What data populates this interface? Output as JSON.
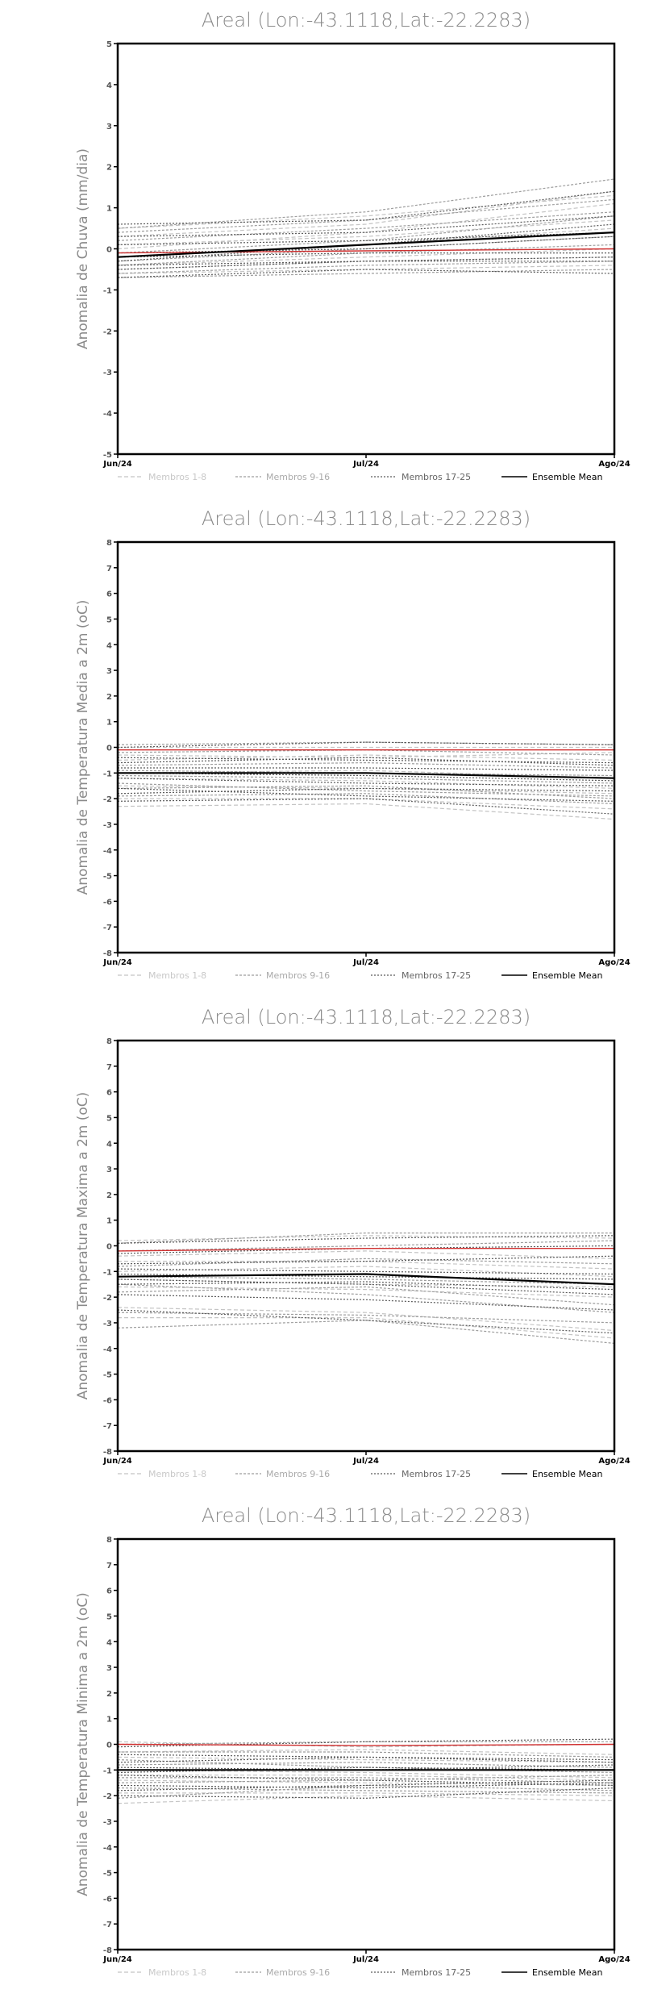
{
  "legend_labels": [
    "Membros 1-8",
    "Membros 9-16",
    "Membros 17-25",
    "Ensemble Mean"
  ],
  "colors": {
    "frame": "#000000",
    "title": "#8a8a8a",
    "axis_label": "#8a8a8a",
    "tick_label": "#555555",
    "members_1_8": "#c4c4c4",
    "members_9_16": "#9e9e9e",
    "members_17_25": "#5a5a5a",
    "ensemble_mean": "#000000",
    "observed_zero": "#d03030"
  },
  "chart_data": [
    {
      "type": "line",
      "title": "Areal (Lon:-43.1118,Lat:-22.2283)",
      "xlabel": "",
      "ylabel": "Anomalia de Chuva (mm/dia)",
      "x": [
        "Jun/24",
        "Jul/24",
        "Ago/24"
      ],
      "ylim": [
        -5,
        5
      ],
      "yticks": [
        5,
        4,
        3,
        2,
        1,
        0,
        -1,
        -2,
        -3,
        -4,
        -5
      ],
      "grid": false,
      "legend_position": "bottom",
      "series": [
        {
          "group": 1,
          "values": [
            0.5,
            0.8,
            1.3
          ]
        },
        {
          "group": 1,
          "values": [
            0.3,
            0.6,
            1.4
          ]
        },
        {
          "group": 1,
          "values": [
            0.1,
            0.3,
            0.7
          ]
        },
        {
          "group": 1,
          "values": [
            -0.2,
            0.1,
            0.5
          ]
        },
        {
          "group": 1,
          "values": [
            -0.4,
            -0.2,
            0.0
          ]
        },
        {
          "group": 1,
          "values": [
            -0.5,
            -0.3,
            -0.2
          ]
        },
        {
          "group": 1,
          "values": [
            -0.6,
            -0.5,
            -0.4
          ]
        },
        {
          "group": 1,
          "values": [
            0.0,
            0.4,
            1.1
          ]
        },
        {
          "group": 2,
          "values": [
            0.5,
            0.9,
            1.7
          ]
        },
        {
          "group": 2,
          "values": [
            0.4,
            0.7,
            1.2
          ]
        },
        {
          "group": 2,
          "values": [
            0.2,
            0.5,
            0.9
          ]
        },
        {
          "group": 2,
          "values": [
            -0.1,
            0.2,
            0.8
          ]
        },
        {
          "group": 2,
          "values": [
            -0.3,
            0.0,
            0.3
          ]
        },
        {
          "group": 2,
          "values": [
            -0.4,
            -0.1,
            0.1
          ]
        },
        {
          "group": 2,
          "values": [
            -0.6,
            -0.4,
            -0.3
          ]
        },
        {
          "group": 2,
          "values": [
            -0.7,
            -0.6,
            -0.5
          ]
        },
        {
          "group": 3,
          "values": [
            0.6,
            0.7,
            1.4
          ]
        },
        {
          "group": 3,
          "values": [
            0.3,
            0.4,
            0.8
          ]
        },
        {
          "group": 3,
          "values": [
            0.1,
            0.2,
            0.4
          ]
        },
        {
          "group": 3,
          "values": [
            -0.1,
            0.0,
            0.3
          ]
        },
        {
          "group": 3,
          "values": [
            -0.2,
            -0.1,
            -0.1
          ]
        },
        {
          "group": 3,
          "values": [
            -0.4,
            -0.3,
            -0.2
          ]
        },
        {
          "group": 3,
          "values": [
            -0.5,
            -0.3,
            -0.3
          ]
        },
        {
          "group": 3,
          "values": [
            -0.7,
            -0.5,
            -0.6
          ]
        },
        {
          "group": 3,
          "values": [
            -0.3,
            0.1,
            0.6
          ]
        },
        {
          "group": "mean",
          "values": [
            -0.2,
            0.1,
            0.4
          ]
        },
        {
          "group": "observed",
          "values": [
            -0.1,
            -0.05,
            0.0
          ]
        }
      ]
    },
    {
      "type": "line",
      "title": "Areal (Lon:-43.1118,Lat:-22.2283)",
      "xlabel": "",
      "ylabel": "Anomalia de Temperatura Media a 2m (oC)",
      "x": [
        "Jun/24",
        "Jul/24",
        "Ago/24"
      ],
      "ylim": [
        -8,
        8
      ],
      "yticks": [
        8,
        7,
        6,
        5,
        4,
        3,
        2,
        1,
        0,
        -1,
        -2,
        -3,
        -4,
        -5,
        -6,
        -7,
        -8
      ],
      "grid": false,
      "legend_position": "bottom",
      "series": [
        {
          "group": 1,
          "values": [
            0.0,
            0.0,
            0.0
          ]
        },
        {
          "group": 1,
          "values": [
            -0.5,
            -0.3,
            -0.5
          ]
        },
        {
          "group": 1,
          "values": [
            -1.0,
            -0.9,
            -1.2
          ]
        },
        {
          "group": 1,
          "values": [
            -1.5,
            -1.6,
            -1.8
          ]
        },
        {
          "group": 1,
          "values": [
            -2.0,
            -2.0,
            -2.4
          ]
        },
        {
          "group": 1,
          "values": [
            -2.3,
            -2.2,
            -2.8
          ]
        },
        {
          "group": 1,
          "values": [
            -0.3,
            -0.4,
            -0.2
          ]
        },
        {
          "group": 1,
          "values": [
            -1.2,
            -1.3,
            -1.6
          ]
        },
        {
          "group": 2,
          "values": [
            0.1,
            0.2,
            0.1
          ]
        },
        {
          "group": 2,
          "values": [
            -0.2,
            -0.1,
            -0.3
          ]
        },
        {
          "group": 2,
          "values": [
            -0.7,
            -0.6,
            -0.8
          ]
        },
        {
          "group": 2,
          "values": [
            -1.1,
            -1.2,
            -1.4
          ]
        },
        {
          "group": 2,
          "values": [
            -1.6,
            -1.5,
            -2.0
          ]
        },
        {
          "group": 2,
          "values": [
            -1.9,
            -1.8,
            -2.2
          ]
        },
        {
          "group": 2,
          "values": [
            -0.9,
            -1.0,
            -1.1
          ]
        },
        {
          "group": 2,
          "values": [
            -1.4,
            -1.7,
            -1.9
          ]
        },
        {
          "group": 3,
          "values": [
            0.0,
            0.2,
            0.1
          ]
        },
        {
          "group": 3,
          "values": [
            -0.4,
            -0.5,
            -0.6
          ]
        },
        {
          "group": 3,
          "values": [
            -0.8,
            -0.8,
            -0.9
          ]
        },
        {
          "group": 3,
          "values": [
            -1.2,
            -1.4,
            -1.5
          ]
        },
        {
          "group": 3,
          "values": [
            -1.6,
            -1.9,
            -2.1
          ]
        },
        {
          "group": 3,
          "values": [
            -2.1,
            -2.0,
            -2.6
          ]
        },
        {
          "group": 3,
          "values": [
            -0.6,
            -0.4,
            -0.7
          ]
        },
        {
          "group": 3,
          "values": [
            -1.0,
            -1.1,
            -1.3
          ]
        },
        {
          "group": 3,
          "values": [
            -1.8,
            -1.6,
            -1.7
          ]
        },
        {
          "group": "mean",
          "values": [
            -1.0,
            -1.0,
            -1.2
          ]
        },
        {
          "group": "observed",
          "values": [
            -0.1,
            -0.1,
            -0.1
          ]
        }
      ]
    },
    {
      "type": "line",
      "title": "Areal (Lon:-43.1118,Lat:-22.2283)",
      "xlabel": "",
      "ylabel": "Anomalia de Temperatura Maxima a 2m (oC)",
      "x": [
        "Jun/24",
        "Jul/24",
        "Ago/24"
      ],
      "ylim": [
        -8,
        8
      ],
      "yticks": [
        8,
        7,
        6,
        5,
        4,
        3,
        2,
        1,
        0,
        -1,
        -2,
        -3,
        -4,
        -5,
        -6,
        -7,
        -8
      ],
      "grid": false,
      "legend_position": "bottom",
      "series": [
        {
          "group": 1,
          "values": [
            0.2,
            0.4,
            0.3
          ]
        },
        {
          "group": 1,
          "values": [
            -0.4,
            -0.2,
            -0.5
          ]
        },
        {
          "group": 1,
          "values": [
            -1.0,
            -0.8,
            -1.2
          ]
        },
        {
          "group": 1,
          "values": [
            -1.6,
            -1.7,
            -2.0
          ]
        },
        {
          "group": 1,
          "values": [
            -2.4,
            -2.6,
            -3.3
          ]
        },
        {
          "group": 1,
          "values": [
            -2.8,
            -2.8,
            -3.6
          ]
        },
        {
          "group": 1,
          "values": [
            -1.3,
            -1.5,
            -1.6
          ]
        },
        {
          "group": 1,
          "values": [
            -0.6,
            -0.6,
            -0.9
          ]
        },
        {
          "group": 2,
          "values": [
            0.1,
            0.5,
            0.5
          ]
        },
        {
          "group": 2,
          "values": [
            -0.2,
            0.0,
            0.2
          ]
        },
        {
          "group": 2,
          "values": [
            -0.8,
            -0.5,
            -0.7
          ]
        },
        {
          "group": 2,
          "values": [
            -1.2,
            -1.3,
            -1.5
          ]
        },
        {
          "group": 2,
          "values": [
            -1.8,
            -1.6,
            -2.3
          ]
        },
        {
          "group": 2,
          "values": [
            -2.6,
            -2.7,
            -3.0
          ]
        },
        {
          "group": 2,
          "values": [
            -3.2,
            -2.9,
            -3.8
          ]
        },
        {
          "group": 2,
          "values": [
            -1.5,
            -1.9,
            -2.6
          ]
        },
        {
          "group": 3,
          "values": [
            0.1,
            0.3,
            0.4
          ]
        },
        {
          "group": 3,
          "values": [
            -0.3,
            -0.1,
            0.0
          ]
        },
        {
          "group": 3,
          "values": [
            -0.7,
            -0.6,
            -0.4
          ]
        },
        {
          "group": 3,
          "values": [
            -1.1,
            -1.2,
            -1.3
          ]
        },
        {
          "group": 3,
          "values": [
            -1.5,
            -1.4,
            -1.7
          ]
        },
        {
          "group": 3,
          "values": [
            -1.9,
            -2.1,
            -2.5
          ]
        },
        {
          "group": 3,
          "values": [
            -2.5,
            -2.9,
            -3.4
          ]
        },
        {
          "group": 3,
          "values": [
            -0.9,
            -1.0,
            -1.1
          ]
        },
        {
          "group": 3,
          "values": [
            -1.3,
            -1.5,
            -1.9
          ]
        },
        {
          "group": "mean",
          "values": [
            -1.2,
            -1.1,
            -1.5
          ]
        },
        {
          "group": "observed",
          "values": [
            -0.2,
            -0.1,
            -0.1
          ]
        }
      ]
    },
    {
      "type": "line",
      "title": "Areal (Lon:-43.1118,Lat:-22.2283)",
      "xlabel": "",
      "ylabel": "Anomalia de Temperatura Minima a 2m (oC)",
      "x": [
        "Jun/24",
        "Jul/24",
        "Ago/24"
      ],
      "ylim": [
        -8,
        8
      ],
      "yticks": [
        8,
        7,
        6,
        5,
        4,
        3,
        2,
        1,
        0,
        -1,
        -2,
        -3,
        -4,
        -5,
        -6,
        -7,
        -8
      ],
      "grid": false,
      "legend_position": "bottom",
      "series": [
        {
          "group": 1,
          "values": [
            0.1,
            -0.1,
            0.0
          ]
        },
        {
          "group": 1,
          "values": [
            -0.5,
            -0.6,
            -0.7
          ]
        },
        {
          "group": 1,
          "values": [
            -1.0,
            -1.1,
            -1.3
          ]
        },
        {
          "group": 1,
          "values": [
            -1.4,
            -1.5,
            -1.6
          ]
        },
        {
          "group": 1,
          "values": [
            -1.9,
            -1.9,
            -2.0
          ]
        },
        {
          "group": 1,
          "values": [
            -2.3,
            -2.0,
            -2.2
          ]
        },
        {
          "group": 1,
          "values": [
            -0.3,
            -0.2,
            -0.4
          ]
        },
        {
          "group": 1,
          "values": [
            -1.2,
            -1.2,
            -1.4
          ]
        },
        {
          "group": 2,
          "values": [
            0.0,
            0.1,
            0.1
          ]
        },
        {
          "group": 2,
          "values": [
            -0.3,
            -0.3,
            -0.5
          ]
        },
        {
          "group": 2,
          "values": [
            -0.8,
            -0.7,
            -0.9
          ]
        },
        {
          "group": 2,
          "values": [
            -1.3,
            -1.3,
            -1.5
          ]
        },
        {
          "group": 2,
          "values": [
            -1.7,
            -1.8,
            -1.9
          ]
        },
        {
          "group": 2,
          "values": [
            -2.1,
            -1.6,
            -1.8
          ]
        },
        {
          "group": 2,
          "values": [
            -0.6,
            -0.9,
            -1.1
          ]
        },
        {
          "group": 2,
          "values": [
            -1.5,
            -1.4,
            -1.2
          ]
        },
        {
          "group": 3,
          "values": [
            -0.1,
            0.1,
            0.2
          ]
        },
        {
          "group": 3,
          "values": [
            -0.4,
            -0.5,
            -0.6
          ]
        },
        {
          "group": 3,
          "values": [
            -0.9,
            -1.0,
            -0.8
          ]
        },
        {
          "group": 3,
          "values": [
            -1.2,
            -1.4,
            -1.6
          ]
        },
        {
          "group": 3,
          "values": [
            -1.6,
            -1.7,
            -1.5
          ]
        },
        {
          "group": 3,
          "values": [
            -2.0,
            -2.1,
            -1.7
          ]
        },
        {
          "group": 3,
          "values": [
            -0.7,
            -0.5,
            -0.7
          ]
        },
        {
          "group": 3,
          "values": [
            -1.1,
            -0.9,
            -1.0
          ]
        },
        {
          "group": 3,
          "values": [
            -1.8,
            -1.6,
            -1.4
          ]
        },
        {
          "group": "mean",
          "values": [
            -1.0,
            -1.0,
            -1.0
          ]
        },
        {
          "group": "observed",
          "values": [
            0.0,
            -0.05,
            0.0
          ]
        }
      ]
    }
  ]
}
